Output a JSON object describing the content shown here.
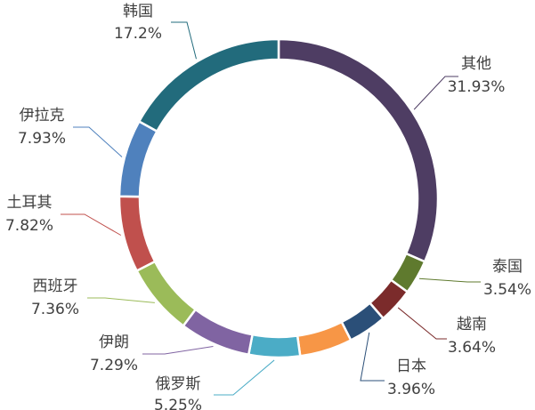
{
  "chart_data": {
    "type": "donut",
    "categories": [
      "其他",
      "泰国",
      "越南",
      "日本",
      null,
      "俄罗斯",
      "伊朗",
      "西班牙",
      "土耳其",
      "伊拉克",
      "韩国"
    ],
    "values": [
      31.93,
      3.54,
      3.64,
      3.96,
      5.4,
      5.25,
      7.29,
      7.36,
      7.82,
      7.93,
      17.2
    ],
    "value_labels": [
      "31.93%",
      "3.54%",
      "3.64%",
      "3.96%",
      null,
      "5.25%",
      "7.29%",
      "7.36%",
      "7.82%",
      "7.93%",
      "17.2%"
    ],
    "colors": [
      "#4e3d63",
      "#5f7a2e",
      "#7b2b2b",
      "#2b4f78",
      "#f79646",
      "#4bacc6",
      "#8064a2",
      "#9bbb59",
      "#c0504d",
      "#4f81bd",
      "#226b7c"
    ]
  }
}
